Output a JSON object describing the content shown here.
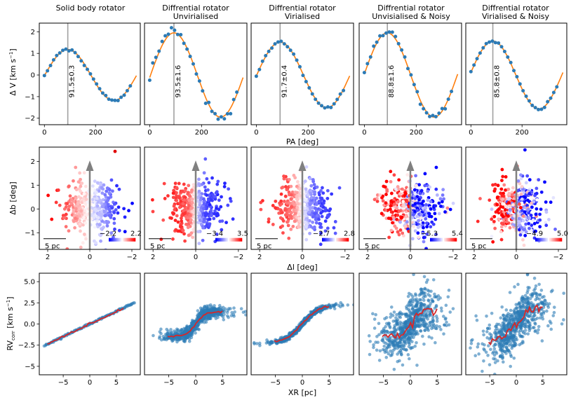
{
  "figure": {
    "column_titles": [
      {
        "line1": "Solid body rotator",
        "line2": ""
      },
      {
        "line1": "Diffrential rotator",
        "line2": "Unvirialised"
      },
      {
        "line1": "Diffrential rotator",
        "line2": "Virialised"
      },
      {
        "line1": "Diffrential rotator",
        "line2": "Unvisialised & Noisy"
      },
      {
        "line1": "Diffrential rotator",
        "line2": "Virialised & Noisy"
      }
    ],
    "row1_xlabel": "PA [deg]",
    "row1_ylabel": "Δ V [km s",
    "row1_ylabel_sup": "−1",
    "row1_ylabel_end": "]",
    "row2_xlabel": "Δl [deg]",
    "row2_ylabel": "Δb [deg]",
    "row3_xlabel": "XR [pc]",
    "row3_ylabel_main": "RV",
    "row3_ylabel_sub": "corr",
    "row3_ylabel_rest": " [km s",
    "row3_ylabel_sup": "−1",
    "row3_ylabel_end": "]",
    "scalebar_label": "5 pc"
  },
  "colors": {
    "points": "#2c7bb6",
    "fit_line": "#ff7f0e",
    "vline": "#a0a0a0",
    "arrow": "#808080",
    "running_mean": "#d62728"
  },
  "chart_data": [
    {
      "type": "scatter",
      "row": "position-angle",
      "xlim": [
        -20,
        375
      ],
      "ylim": [
        -2.3,
        2.4
      ],
      "xticks": [
        0,
        200
      ],
      "yticks": [
        -2,
        -1,
        0,
        1,
        2
      ],
      "xlabel": "PA [deg]",
      "panels": [
        {
          "amplitude": 1.18,
          "peak_pa": 91.5,
          "annotation": "91.5±0.3",
          "show_yticks": true
        },
        {
          "amplitude": 1.95,
          "peak_pa": 93.5,
          "annotation": "93.5±1.6",
          "show_yticks": false
        },
        {
          "amplitude": 1.52,
          "peak_pa": 91.7,
          "annotation": "91.7±0.4",
          "show_yticks": false
        },
        {
          "amplitude": 1.95,
          "peak_pa": 88.8,
          "annotation": "88.8±1.6",
          "show_yticks": false
        },
        {
          "amplitude": 1.57,
          "peak_pa": 85.8,
          "annotation": "85.8±0.8",
          "show_yticks": false
        }
      ]
    },
    {
      "type": "scatter",
      "row": "sky-map",
      "xlim": [
        2.4,
        -2.4
      ],
      "ylim": [
        -1.7,
        2.6
      ],
      "xticks": [
        2,
        0,
        -2
      ],
      "yticks": [
        -1,
        0,
        1,
        2
      ],
      "xlabel": "Δl [deg]",
      "ylabel": "Δb [deg]",
      "panels": [
        {
          "colorbar_min": "−2.2",
          "colorbar_max": "2.2",
          "noisy": false
        },
        {
          "colorbar_min": "−3.4",
          "colorbar_max": "3.5",
          "noisy": false
        },
        {
          "colorbar_min": "−2.7",
          "colorbar_max": "2.8",
          "noisy": false
        },
        {
          "colorbar_min": "−5.3",
          "colorbar_max": "5.4",
          "noisy": true
        },
        {
          "colorbar_min": "−4.9",
          "colorbar_max": "5.0",
          "noisy": true
        }
      ]
    },
    {
      "type": "scatter",
      "row": "rv-vs-xr",
      "xlim": [
        -9.5,
        9.5
      ],
      "ylim": [
        -6,
        6
      ],
      "xticks": [
        -5,
        0,
        5
      ],
      "yticks": [
        -5.0,
        -2.5,
        0.0,
        2.5,
        5.0
      ],
      "xlabel": "XR [pc]",
      "panels": [
        {
          "model": "linear",
          "scale": 0.3,
          "scatter": 0.05
        },
        {
          "model": "differential",
          "scale": 1.45,
          "scatter": 0.35
        },
        {
          "model": "tanh",
          "scale": 1.75,
          "scatter": 0.15
        },
        {
          "model": "differential",
          "scale": 1.45,
          "scatter": 1.6
        },
        {
          "model": "tanh",
          "scale": 1.75,
          "scatter": 1.4
        }
      ]
    }
  ]
}
